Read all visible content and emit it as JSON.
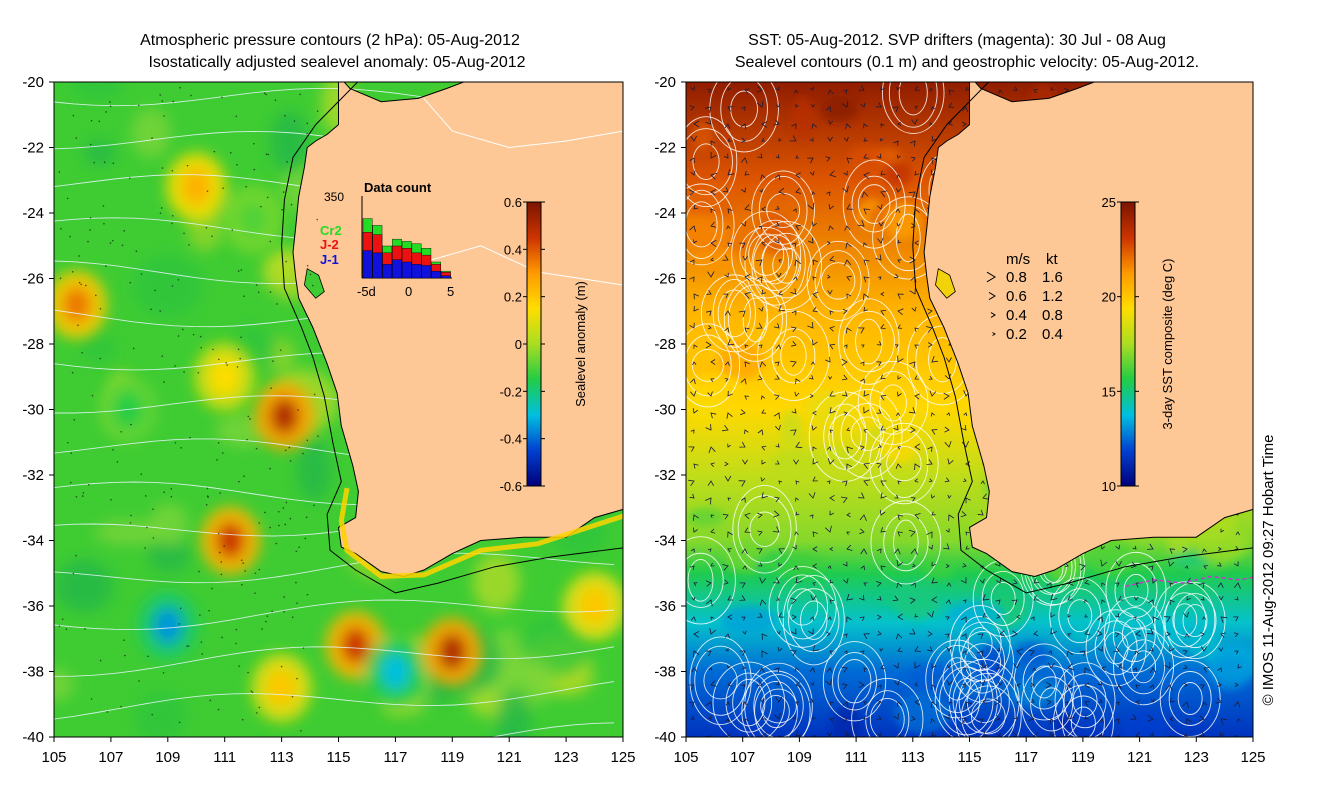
{
  "chart_data": [
    {
      "type": "heatmap",
      "title_line1": "Atmospheric pressure contours (2 hPa): 05-Aug-2012",
      "title_line2": "Isostatically adjusted sealevel anomaly: 05-Aug-2012",
      "x_ticks": [
        "105",
        "107",
        "109",
        "111",
        "113",
        "115",
        "117",
        "119",
        "121",
        "123",
        "125"
      ],
      "y_ticks": [
        "-20",
        "-22",
        "-24",
        "-26",
        "-28",
        "-30",
        "-32",
        "-34",
        "-36",
        "-38",
        "-40"
      ],
      "xlim": [
        105,
        125
      ],
      "ylim": [
        -40,
        -20
      ],
      "colorbar": {
        "label": "Sealevel anomaly (m)",
        "ticks": [
          "0.6",
          "0.4",
          "0.2",
          "0",
          "-0.2",
          "-0.4",
          "-0.6"
        ],
        "range": [
          -0.6,
          0.6
        ],
        "stops": [
          "#00007a",
          "#0040d0",
          "#00c0e0",
          "#22cc44",
          "#aadd22",
          "#ffdd00",
          "#ff9900",
          "#cc3300",
          "#7a1500"
        ]
      },
      "anomaly_blobs": [
        {
          "lon": 105.8,
          "lat": -26.8,
          "v": 0.35
        },
        {
          "lon": 111.2,
          "lat": -34.0,
          "v": 0.45
        },
        {
          "lon": 113.1,
          "lat": -30.2,
          "v": 0.5
        },
        {
          "lon": 115.6,
          "lat": -37.2,
          "v": 0.45
        },
        {
          "lon": 119.0,
          "lat": -37.4,
          "v": 0.5
        },
        {
          "lon": 109.0,
          "lat": -36.6,
          "v": -0.35
        },
        {
          "lon": 117.0,
          "lat": -38.0,
          "v": -0.3
        },
        {
          "lon": 110.0,
          "lat": -23.2,
          "v": 0.25
        },
        {
          "lon": 111.0,
          "lat": -29.0,
          "v": 0.15
        },
        {
          "lon": 107.6,
          "lat": -30.0,
          "v": -0.15
        },
        {
          "lon": 112.0,
          "lat": -24.2,
          "v": -0.1
        },
        {
          "lon": 113.0,
          "lat": -38.5,
          "v": 0.2
        },
        {
          "lon": 124.0,
          "lat": -36.0,
          "v": 0.2
        }
      ],
      "inset": {
        "title": "Data count",
        "ymax_label": "350",
        "x_ticks": [
          "-5d",
          "0",
          "5"
        ],
        "series": [
          {
            "name": "Cr2",
            "color": "#22dd22",
            "values": [
              260,
              230,
              140,
              170,
              160,
              150,
              130,
              70,
              30
            ]
          },
          {
            "name": "J-2",
            "color": "#ee1111",
            "values": [
              200,
              190,
              110,
              140,
              130,
              110,
              100,
              60,
              25
            ]
          },
          {
            "name": "J-1",
            "color": "#1111dd",
            "values": [
              120,
              110,
              60,
              80,
              70,
              60,
              55,
              30,
              10
            ]
          }
        ]
      }
    },
    {
      "type": "heatmap",
      "title_line1": "SST: 05-Aug-2012. SVP drifters (magenta): 30 Jul - 08 Aug",
      "title_line2": "Sealevel contours (0.1 m) and geostrophic velocity: 05-Aug-2012.",
      "x_ticks": [
        "105",
        "107",
        "109",
        "111",
        "113",
        "115",
        "117",
        "119",
        "121",
        "123",
        "125"
      ],
      "y_ticks": [
        "-20",
        "-22",
        "-24",
        "-26",
        "-28",
        "-30",
        "-32",
        "-34",
        "-36",
        "-38",
        "-40"
      ],
      "xlim": [
        105,
        125
      ],
      "ylim": [
        -40,
        -20
      ],
      "colorbar": {
        "label": "3-day SST composite (deg C)",
        "ticks": [
          "25",
          "20",
          "15",
          "10"
        ],
        "range": [
          10,
          25
        ],
        "stops": [
          "#00007a",
          "#0040d0",
          "#00c0e0",
          "#22cc44",
          "#aadd22",
          "#ffdd00",
          "#ff9900",
          "#cc3300",
          "#7a1500"
        ]
      },
      "sst_by_lat": [
        {
          "lat": -20,
          "t": 24.5
        },
        {
          "lat": -23,
          "t": 22.5
        },
        {
          "lat": -27,
          "t": 20.5
        },
        {
          "lat": -30,
          "t": 19.5
        },
        {
          "lat": -32,
          "t": 18.0
        },
        {
          "lat": -34,
          "t": 17.0
        },
        {
          "lat": -35,
          "t": 15.5
        },
        {
          "lat": -36.5,
          "t": 14.0
        },
        {
          "lat": -38,
          "t": 12.5
        },
        {
          "lat": -40,
          "t": 11.5
        }
      ],
      "velocity_legend": {
        "header_ms": "m/s",
        "header_kt": "kt",
        "rows": [
          {
            "ms": "0.8",
            "kt": "1.6"
          },
          {
            "ms": "0.6",
            "kt": "1.2"
          },
          {
            "ms": "0.4",
            "kt": "0.8"
          },
          {
            "ms": "0.2",
            "kt": "0.4"
          }
        ]
      }
    }
  ],
  "credit": "© IMOS 11-Aug-2012 09:27 Hobart Time",
  "colors": {
    "land": "#fdc796",
    "contour": "#ffffff",
    "coast": "#000000",
    "isobath": "#000000"
  }
}
